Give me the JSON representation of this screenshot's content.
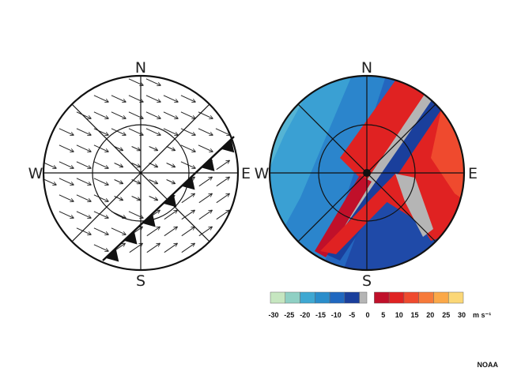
{
  "left_diagram": {
    "compass": {
      "n": "N",
      "s": "S",
      "e": "E",
      "w": "W"
    }
  },
  "right_diagram": {
    "compass": {
      "n": "N",
      "s": "S",
      "e": "E",
      "w": "W"
    }
  },
  "colorbar": {
    "ticks": [
      "-30",
      "-25",
      "-20",
      "-15",
      "-10",
      "-5",
      "0",
      "5",
      "10",
      "15",
      "20",
      "25",
      "30"
    ],
    "units": "m s⁻¹",
    "colors": [
      "#c6e6c0",
      "#8fd0c4",
      "#3fa8d2",
      "#2a8dcb",
      "#2068c0",
      "#1a3f9c",
      "#b5b5b5",
      "#c0102a",
      "#e02222",
      "#ef4a2e",
      "#f67a3a",
      "#fba848",
      "#fbd777"
    ]
  },
  "credit": "NOAA"
}
